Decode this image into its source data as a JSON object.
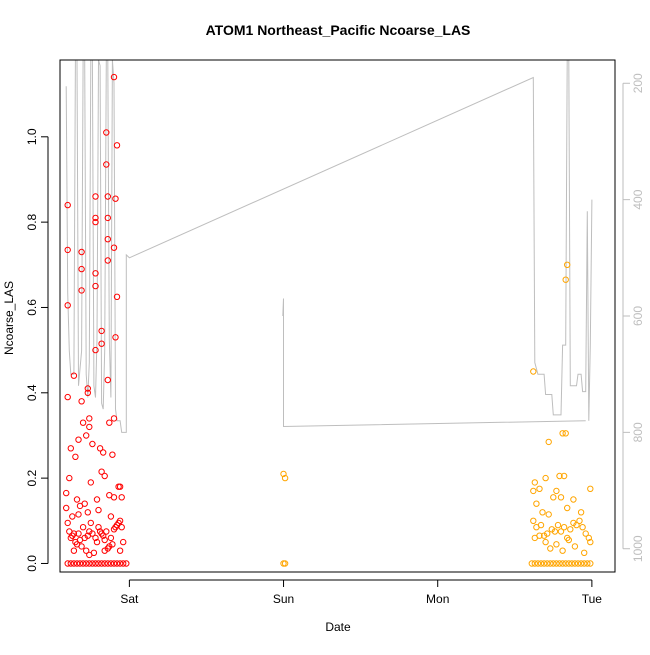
{
  "chart_data": {
    "type": "scatter",
    "title": "ATOM1 Northeast_Pacific Ncoarse_LAS",
    "xlabel": "Date",
    "ylabel": "Ncoarse_LAS",
    "x_ticks": [
      "Sat",
      "Sun",
      "Mon",
      "Tue"
    ],
    "x_domain_days": [
      -0.45,
      3.15
    ],
    "ylim": [
      -0.02,
      1.18
    ],
    "y_ticks": [
      0.0,
      0.2,
      0.4,
      0.6,
      0.8,
      1.0
    ],
    "y_tick_labels": [
      "0.0",
      "0.2",
      "0.4",
      "0.6",
      "0.8",
      "1.0"
    ],
    "right_axis": {
      "lim": [
        1040,
        160
      ],
      "ticks": [
        200,
        400,
        600,
        800,
        1000
      ],
      "tick_labels": [
        "200",
        "400",
        "600",
        "800",
        "1000"
      ],
      "color": "#bebebe"
    },
    "colors": {
      "series_1": "#ff0000",
      "series_2": "#ffa500",
      "line": "#bebebe",
      "axis": "#000000"
    },
    "series": [
      {
        "color": "#ff0000",
        "marker": "open-circle",
        "points": [
          [
            -0.4,
            0.84
          ],
          [
            -0.4,
            0.735
          ],
          [
            -0.4,
            0.605
          ],
          [
            -0.4,
            0.39
          ],
          [
            -0.36,
            0.44
          ],
          [
            -0.38,
            0.27
          ],
          [
            -0.31,
            0.73
          ],
          [
            -0.31,
            0.69
          ],
          [
            -0.31,
            0.64
          ],
          [
            -0.31,
            0.38
          ],
          [
            -0.27,
            0.41
          ],
          [
            -0.27,
            0.4
          ],
          [
            -0.26,
            0.34
          ],
          [
            -0.26,
            0.32
          ],
          [
            -0.22,
            0.86
          ],
          [
            -0.22,
            0.81
          ],
          [
            -0.22,
            0.8
          ],
          [
            -0.22,
            0.68
          ],
          [
            -0.22,
            0.65
          ],
          [
            -0.22,
            0.5
          ],
          [
            -0.18,
            0.545
          ],
          [
            -0.18,
            0.515
          ],
          [
            -0.15,
            1.01
          ],
          [
            -0.15,
            0.935
          ],
          [
            -0.14,
            0.86
          ],
          [
            -0.14,
            0.81
          ],
          [
            -0.14,
            0.76
          ],
          [
            -0.14,
            0.71
          ],
          [
            -0.14,
            0.43
          ],
          [
            -0.1,
            1.14
          ],
          [
            -0.08,
            0.98
          ],
          [
            -0.09,
            0.855
          ],
          [
            -0.1,
            0.74
          ],
          [
            -0.08,
            0.625
          ],
          [
            -0.09,
            0.53
          ],
          [
            -0.1,
            0.34
          ],
          [
            -0.33,
            0.29
          ],
          [
            -0.3,
            0.33
          ],
          [
            -0.28,
            0.3
          ],
          [
            -0.24,
            0.28
          ],
          [
            -0.19,
            0.27
          ],
          [
            -0.17,
            0.26
          ],
          [
            -0.13,
            0.33
          ],
          [
            -0.11,
            0.255
          ],
          [
            -0.35,
            0.25
          ],
          [
            -0.39,
            0.2
          ],
          [
            -0.34,
            0.15
          ],
          [
            -0.32,
            0.135
          ],
          [
            -0.29,
            0.14
          ],
          [
            -0.25,
            0.19
          ],
          [
            -0.21,
            0.15
          ],
          [
            -0.18,
            0.215
          ],
          [
            -0.16,
            0.205
          ],
          [
            -0.13,
            0.16
          ],
          [
            -0.1,
            0.155
          ],
          [
            -0.07,
            0.18
          ],
          [
            -0.06,
            0.18
          ],
          [
            -0.05,
            0.155
          ],
          [
            -0.41,
            0.165
          ],
          [
            -0.41,
            0.13
          ],
          [
            -0.4,
            0.095
          ],
          [
            -0.39,
            0.075
          ],
          [
            -0.38,
            0.06
          ],
          [
            -0.37,
            0.065
          ],
          [
            -0.36,
            0.07
          ],
          [
            -0.35,
            0.05
          ],
          [
            -0.34,
            0.045
          ],
          [
            -0.33,
            0.07
          ],
          [
            -0.32,
            0.055
          ],
          [
            -0.31,
            0.04
          ],
          [
            -0.3,
            0.085
          ],
          [
            -0.29,
            0.06
          ],
          [
            -0.28,
            0.03
          ],
          [
            -0.27,
            0.065
          ],
          [
            -0.26,
            0.075
          ],
          [
            -0.25,
            0.095
          ],
          [
            -0.24,
            0.07
          ],
          [
            -0.23,
            0.025
          ],
          [
            -0.22,
            0.06
          ],
          [
            -0.21,
            0.05
          ],
          [
            -0.2,
            0.085
          ],
          [
            -0.19,
            0.075
          ],
          [
            -0.18,
            0.07
          ],
          [
            -0.17,
            0.065
          ],
          [
            -0.16,
            0.055
          ],
          [
            -0.15,
            0.075
          ],
          [
            -0.14,
            0.035
          ],
          [
            -0.13,
            0.04
          ],
          [
            -0.12,
            0.06
          ],
          [
            -0.11,
            0.045
          ],
          [
            -0.1,
            0.08
          ],
          [
            -0.09,
            0.085
          ],
          [
            -0.08,
            0.09
          ],
          [
            -0.07,
            0.095
          ],
          [
            -0.06,
            0.1
          ],
          [
            -0.05,
            0.085
          ],
          [
            -0.04,
            0.05
          ],
          [
            -0.37,
            0.11
          ],
          [
            -0.33,
            0.115
          ],
          [
            -0.27,
            0.12
          ],
          [
            -0.2,
            0.125
          ],
          [
            -0.12,
            0.11
          ],
          [
            -0.36,
            0.03
          ],
          [
            -0.26,
            0.02
          ],
          [
            -0.16,
            0.03
          ],
          [
            -0.06,
            0.03
          ],
          [
            -0.4,
            0.0
          ],
          [
            -0.38,
            0.0
          ],
          [
            -0.36,
            0.0
          ],
          [
            -0.34,
            0.0
          ],
          [
            -0.32,
            0.0
          ],
          [
            -0.3,
            0.0
          ],
          [
            -0.28,
            0.0
          ],
          [
            -0.26,
            0.0
          ],
          [
            -0.24,
            0.0
          ],
          [
            -0.22,
            0.0
          ],
          [
            -0.2,
            0.0
          ],
          [
            -0.18,
            0.0
          ],
          [
            -0.16,
            0.0
          ],
          [
            -0.14,
            0.0
          ],
          [
            -0.12,
            0.0
          ],
          [
            -0.1,
            0.0
          ],
          [
            -0.08,
            0.0
          ],
          [
            -0.06,
            0.0
          ],
          [
            -0.04,
            0.0
          ],
          [
            -0.02,
            0.0
          ]
        ]
      },
      {
        "color": "#ffa500",
        "marker": "open-circle",
        "points": [
          [
            1.0,
            0.21
          ],
          [
            1.01,
            0.2
          ],
          [
            1.0,
            0.0
          ],
          [
            1.01,
            0.0
          ],
          [
            2.62,
            0.45
          ],
          [
            2.84,
            0.7
          ],
          [
            2.83,
            0.665
          ],
          [
            2.81,
            0.305
          ],
          [
            2.83,
            0.305
          ],
          [
            2.72,
            0.285
          ],
          [
            2.63,
            0.19
          ],
          [
            2.66,
            0.175
          ],
          [
            2.62,
            0.17
          ],
          [
            2.64,
            0.14
          ],
          [
            2.7,
            0.2
          ],
          [
            2.79,
            0.205
          ],
          [
            2.82,
            0.205
          ],
          [
            2.77,
            0.17
          ],
          [
            2.99,
            0.175
          ],
          [
            2.88,
            0.15
          ],
          [
            2.75,
            0.155
          ],
          [
            2.8,
            0.155
          ],
          [
            2.68,
            0.12
          ],
          [
            2.72,
            0.115
          ],
          [
            2.84,
            0.13
          ],
          [
            2.93,
            0.12
          ],
          [
            2.62,
            0.1
          ],
          [
            2.64,
            0.085
          ],
          [
            2.67,
            0.09
          ],
          [
            2.69,
            0.065
          ],
          [
            2.71,
            0.07
          ],
          [
            2.74,
            0.08
          ],
          [
            2.76,
            0.075
          ],
          [
            2.78,
            0.09
          ],
          [
            2.8,
            0.075
          ],
          [
            2.82,
            0.085
          ],
          [
            2.84,
            0.06
          ],
          [
            2.86,
            0.08
          ],
          [
            2.88,
            0.095
          ],
          [
            2.9,
            0.09
          ],
          [
            2.92,
            0.1
          ],
          [
            2.94,
            0.085
          ],
          [
            2.96,
            0.07
          ],
          [
            2.98,
            0.06
          ],
          [
            2.63,
            0.06
          ],
          [
            2.66,
            0.065
          ],
          [
            2.7,
            0.05
          ],
          [
            2.73,
            0.035
          ],
          [
            2.77,
            0.045
          ],
          [
            2.81,
            0.03
          ],
          [
            2.85,
            0.055
          ],
          [
            2.89,
            0.04
          ],
          [
            2.95,
            0.025
          ],
          [
            2.99,
            0.05
          ],
          [
            2.61,
            0.0
          ],
          [
            2.63,
            0.0
          ],
          [
            2.65,
            0.0
          ],
          [
            2.67,
            0.0
          ],
          [
            2.69,
            0.0
          ],
          [
            2.71,
            0.0
          ],
          [
            2.73,
            0.0
          ],
          [
            2.75,
            0.0
          ],
          [
            2.77,
            0.0
          ],
          [
            2.79,
            0.0
          ],
          [
            2.81,
            0.0
          ],
          [
            2.83,
            0.0
          ],
          [
            2.85,
            0.0
          ],
          [
            2.87,
            0.0
          ],
          [
            2.89,
            0.0
          ],
          [
            2.91,
            0.0
          ],
          [
            2.93,
            0.0
          ],
          [
            2.95,
            0.0
          ],
          [
            2.97,
            0.0
          ],
          [
            2.99,
            0.0
          ]
        ]
      }
    ],
    "line_series": {
      "axis": "right",
      "color": "#bebebe",
      "segments": [
        [
          [
            -0.41,
            205
          ],
          [
            -0.4,
            560
          ],
          [
            -0.39,
            660
          ],
          [
            -0.38,
            700
          ],
          [
            -0.36,
            700
          ],
          [
            -0.35,
            160
          ],
          [
            -0.34,
            160
          ],
          [
            -0.33,
            720
          ],
          [
            -0.31,
            660
          ],
          [
            -0.3,
            160
          ],
          [
            -0.29,
            160
          ],
          [
            -0.28,
            700
          ],
          [
            -0.27,
            740
          ],
          [
            -0.26,
            680
          ],
          [
            -0.25,
            160
          ],
          [
            -0.24,
            160
          ],
          [
            -0.23,
            720
          ],
          [
            -0.22,
            740
          ],
          [
            -0.21,
            640
          ],
          [
            -0.2,
            160
          ],
          [
            -0.19,
            170
          ],
          [
            -0.18,
            750
          ],
          [
            -0.17,
            760
          ],
          [
            -0.16,
            660
          ],
          [
            -0.15,
            160
          ],
          [
            -0.14,
            160
          ],
          [
            -0.13,
            640
          ],
          [
            -0.12,
            740
          ],
          [
            -0.11,
            160
          ],
          [
            -0.1,
            200
          ],
          [
            -0.09,
            760
          ],
          [
            -0.08,
            780
          ],
          [
            -0.06,
            780
          ],
          [
            -0.05,
            800
          ],
          [
            -0.02,
            800
          ],
          [
            -0.02,
            495
          ],
          [
            0.0,
            500
          ],
          [
            2.62,
            190
          ],
          [
            2.63,
            680
          ],
          [
            2.65,
            700
          ],
          [
            2.69,
            700
          ],
          [
            2.7,
            735
          ],
          [
            2.74,
            735
          ],
          [
            2.75,
            770
          ],
          [
            2.8,
            770
          ],
          [
            2.81,
            650
          ],
          [
            2.83,
            650
          ],
          [
            2.84,
            160
          ],
          [
            2.85,
            160
          ],
          [
            2.86,
            720
          ],
          [
            2.9,
            720
          ],
          [
            2.91,
            700
          ],
          [
            2.93,
            700
          ],
          [
            2.94,
            730
          ],
          [
            2.96,
            730
          ],
          [
            2.97,
            420
          ],
          [
            2.98,
            780
          ],
          [
            2.99,
            650
          ],
          [
            3.0,
            400
          ]
        ],
        [
          [
            0.995,
            600
          ],
          [
            1.0,
            570
          ],
          [
            1.0,
            790
          ],
          [
            2.96,
            780
          ]
        ]
      ]
    }
  }
}
